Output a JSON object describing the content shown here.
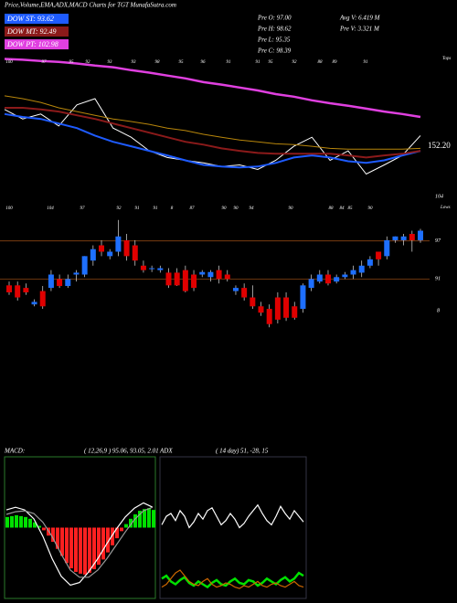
{
  "chart_data": [
    {
      "type": "line",
      "title": "Price,Volume,EMA,ADX,MACD Charts for TGT MunafaSutra.com",
      "annotations": [
        "Pre O: 97.00",
        "Pre H: 98.62",
        "Pre L: 95.35",
        "Pre C: 98.39",
        "Avg V: 6.419 M",
        "Pre V: 3.321 M",
        "Tops",
        "152.20"
      ],
      "ylim": [
        86,
        118
      ],
      "series": [
        {
          "name": "DOW ST: 93.62",
          "color": "#1e5bff",
          "values": [
            103.7,
            103.0,
            102.5,
            101.4,
            100.3,
            98.5,
            97.0,
            95.9,
            94.8,
            93.7,
            92.5,
            91.4,
            91.0,
            90.8,
            91.0,
            91.9,
            93.2,
            93.7,
            93.2,
            92.3,
            91.9,
            92.5,
            93.7,
            94.8
          ]
        },
        {
          "name": "DOW MT: 92.49",
          "color": "#8b1a1a",
          "values": [
            105.2,
            105.2,
            104.8,
            104.3,
            103.4,
            102.5,
            101.4,
            100.3,
            99.2,
            98.1,
            97.0,
            96.3,
            95.4,
            94.8,
            94.3,
            94.1,
            94.1,
            94.1,
            94.1,
            93.7,
            93.2,
            93.7,
            94.1,
            94.8
          ]
        },
        {
          "name": "DOW PT: 102.98",
          "color": "#e040e0",
          "values": [
            117.0,
            116.8,
            116.5,
            116.3,
            115.9,
            115.4,
            115.0,
            114.3,
            113.7,
            113.0,
            112.3,
            111.4,
            110.8,
            110.1,
            109.4,
            108.5,
            107.9,
            107.0,
            106.3,
            105.7,
            105.0,
            104.3,
            103.7,
            103.0
          ]
        }
      ],
      "lines": [
        {
          "color": "#ffffff",
          "values": [
            104.8,
            102.5,
            103.7,
            100.8,
            105.9,
            107.4,
            100.3,
            98.1,
            94.8,
            93.2,
            92.5,
            91.9,
            91.0,
            91.4,
            90.3,
            92.5,
            95.9,
            98.1,
            92.5,
            94.8,
            89.2,
            91.4,
            93.7,
            98.5
          ]
        },
        {
          "color": "#b8860b",
          "values": [
            108.1,
            107.4,
            106.5,
            105.2,
            104.3,
            103.4,
            102.5,
            101.9,
            101.2,
            100.3,
            99.7,
            98.8,
            98.1,
            97.4,
            97.0,
            96.5,
            96.3,
            95.9,
            95.4,
            95.2,
            95.2,
            95.2,
            95.2,
            95.4
          ]
        }
      ],
      "price_labels": [
        "100",
        "97",
        "95",
        "92",
        "93",
        "93",
        "98",
        "95",
        "96",
        "91",
        "91",
        "95",
        "92",
        "88",
        "89",
        "91"
      ]
    },
    {
      "type": "candlestick",
      "annotations": [
        "Lows",
        "8"
      ],
      "ylim": [
        85.3,
        104
      ],
      "yticks": [
        104,
        97,
        91
      ],
      "up_color": "#1e6fff",
      "down_color": "#e00000",
      "grid_color": "#8b4513",
      "open": [
        90.0,
        90.0,
        89.6,
        87.0,
        89.1,
        89.6,
        91.0,
        89.9,
        91.7,
        91.7,
        93.9,
        96.3,
        94.6,
        95.3,
        97.1,
        96.3,
        93.1,
        92.6,
        92.4,
        92.0,
        92.0,
        92.4,
        91.7,
        91.7,
        91.3,
        92.4,
        91.7,
        89.1,
        89.6,
        88.1,
        86.7,
        86.3,
        88.1,
        88.1,
        86.7,
        86.3,
        89.6,
        90.6,
        91.7,
        90.6,
        91.3,
        91.7,
        92.0,
        93.1,
        95.3,
        94.6,
        97.1,
        97.1,
        98.1,
        97.1
      ],
      "high": [
        90.6,
        90.6,
        90.3,
        87.8,
        89.9,
        92.4,
        91.7,
        91.7,
        92.4,
        94.6,
        96.3,
        97.1,
        95.7,
        100.3,
        98.1,
        97.1,
        93.9,
        93.1,
        93.1,
        92.7,
        92.7,
        93.1,
        92.4,
        92.4,
        92.4,
        93.1,
        92.4,
        90.0,
        90.3,
        90.0,
        87.4,
        87.0,
        88.9,
        88.9,
        87.4,
        90.3,
        91.7,
        92.4,
        92.4,
        91.7,
        92.1,
        93.1,
        93.9,
        94.6,
        95.3,
        97.7,
        97.7,
        98.1,
        98.6,
        98.9
      ],
      "low": [
        88.5,
        87.6,
        88.5,
        86.7,
        86.3,
        89.1,
        89.6,
        89.6,
        90.6,
        91.3,
        93.1,
        94.6,
        94.1,
        94.6,
        93.9,
        93.1,
        92.0,
        92.1,
        92.0,
        89.6,
        89.9,
        88.9,
        89.1,
        91.3,
        90.6,
        90.3,
        90.6,
        88.5,
        87.6,
        86.3,
        85.2,
        83.4,
        84.0,
        84.4,
        84.6,
        85.7,
        89.1,
        90.3,
        90.0,
        90.3,
        91.0,
        91.0,
        91.3,
        92.7,
        93.1,
        94.1,
        96.7,
        96.3,
        95.3,
        96.7
      ],
      "close": [
        88.9,
        88.1,
        88.9,
        87.4,
        86.7,
        91.7,
        89.9,
        91.0,
        92.0,
        94.6,
        95.7,
        95.3,
        95.3,
        97.7,
        94.6,
        93.9,
        92.4,
        92.7,
        92.7,
        90.0,
        90.0,
        89.1,
        89.6,
        92.1,
        92.1,
        91.0,
        91.0,
        89.6,
        88.1,
        86.7,
        85.7,
        83.9,
        84.6,
        84.9,
        84.9,
        90.0,
        91.0,
        91.7,
        90.3,
        91.3,
        91.7,
        92.4,
        93.1,
        94.1,
        94.1,
        97.1,
        97.7,
        97.7,
        97.1,
        98.6
      ],
      "price_labels": [
        "100",
        "104",
        "97",
        "92",
        "91",
        "91",
        "8",
        "87",
        "90",
        "90",
        "94",
        "90",
        "88",
        "84",
        "85",
        "90"
      ]
    },
    {
      "type": "macd",
      "title": "MACD:",
      "subtitle": "( 12,26,9 ) 95.06, 93.05, 2.01",
      "ylim": [
        -8,
        8
      ],
      "pos_color": "#00e000",
      "neg_color": "#ff2020",
      "values": [
        1.2,
        1.3,
        1.4,
        1.3,
        1.2,
        1.0,
        0.6,
        0.2,
        -0.3,
        -0.9,
        -1.6,
        -2.4,
        -3.2,
        -4.0,
        -4.6,
        -5.0,
        -5.2,
        -5.3,
        -5.1,
        -4.7,
        -4.2,
        -3.6,
        -2.8,
        -2.0,
        -1.2,
        -0.4,
        0.4,
        1.0,
        1.5,
        1.9,
        2.1,
        2.2,
        2.0
      ],
      "lines": [
        {
          "color": "#ffffff",
          "values": [
            2.0,
            2.3,
            2.0,
            1.0,
            -1.0,
            -3.5,
            -5.5,
            -6.5,
            -6.2,
            -5.0,
            -3.5,
            -1.8,
            -0.2,
            1.2,
            2.2,
            2.8,
            2.3
          ]
        },
        {
          "color": "#9a9a9a",
          "values": [
            1.5,
            1.8,
            1.9,
            1.6,
            0.6,
            -1.0,
            -3.0,
            -4.8,
            -5.6,
            -5.6,
            -4.8,
            -3.5,
            -2.0,
            -0.5,
            0.9,
            1.9,
            2.3
          ]
        }
      ]
    },
    {
      "type": "adx",
      "title": "ADX",
      "subtitle": "( 14 day) 51, -28, 15",
      "ylim": [
        0,
        100
      ],
      "lines": [
        {
          "color": "#ffffff",
          "values": [
            52,
            58,
            60,
            55,
            62,
            58,
            50,
            54,
            60,
            56,
            62,
            64,
            58,
            52,
            55,
            60,
            56,
            50,
            53,
            58,
            62,
            66,
            60,
            55,
            52,
            58,
            65,
            60,
            56,
            62,
            58,
            54
          ]
        },
        {
          "color": "#00e000",
          "values": [
            14,
            16,
            12,
            10,
            13,
            15,
            11,
            9,
            12,
            10,
            8,
            11,
            13,
            10,
            9,
            12,
            14,
            11,
            10,
            13,
            12,
            9,
            11,
            14,
            12,
            10,
            13,
            15,
            12,
            14,
            18,
            16
          ]
        },
        {
          "color": "#cc6600",
          "values": [
            8,
            10,
            14,
            18,
            20,
            16,
            12,
            10,
            9,
            12,
            14,
            10,
            8,
            9,
            11,
            10,
            8,
            7,
            9,
            8,
            10,
            12,
            9,
            8,
            10,
            11,
            9,
            8,
            10,
            12,
            9,
            8
          ]
        }
      ]
    }
  ]
}
